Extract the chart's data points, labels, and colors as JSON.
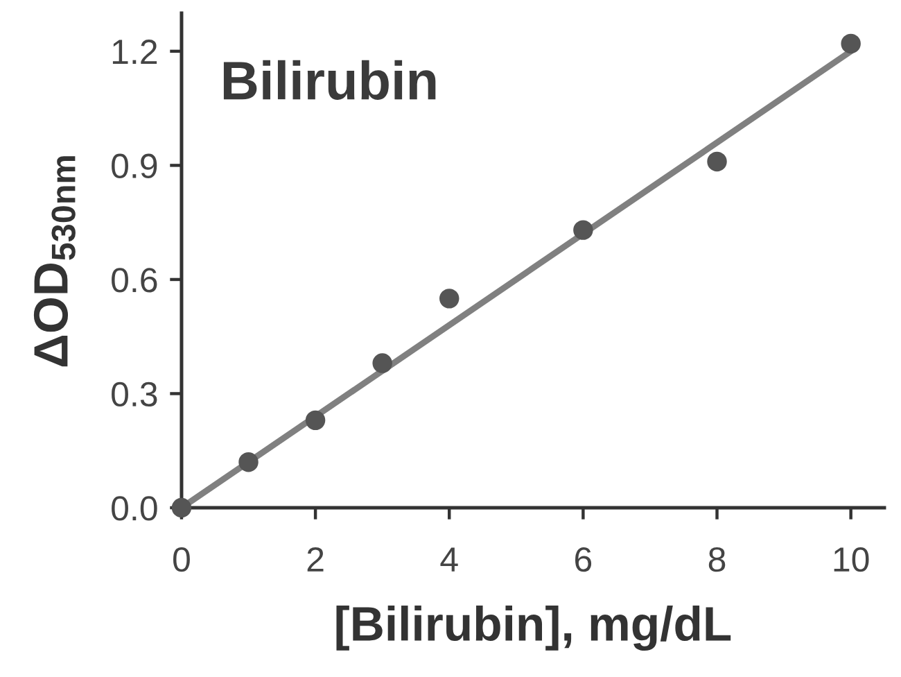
{
  "chart_data": {
    "type": "scatter",
    "title": "Bilirubin",
    "xlabel": "[Bilirubin], mg/dL",
    "ylabel": "ΔOD$_{530nm}$",
    "xlim": [
      0,
      10.5
    ],
    "xticks": [
      0,
      2,
      4,
      6,
      8,
      10
    ],
    "ylim": [
      0,
      1.3
    ],
    "yticks": [
      {
        "value": 0,
        "label": "0.0"
      },
      0.3,
      0.6,
      0.9,
      1.2
    ],
    "grid": false,
    "series": [
      {
        "color": "#555555",
        "marker": "circle",
        "x": [
          0,
          1,
          2,
          3,
          4,
          6,
          8,
          10
        ],
        "values": [
          0,
          0.12,
          0.23,
          0.38,
          0.55,
          0.73,
          0.91,
          1.22
        ]
      },
      {
        "type": "line",
        "color": "#808080",
        "marker": "none",
        "line_style": "solid",
        "x": [
          0,
          10
        ],
        "values": [
          0,
          1.2
        ]
      }
    ]
  }
}
